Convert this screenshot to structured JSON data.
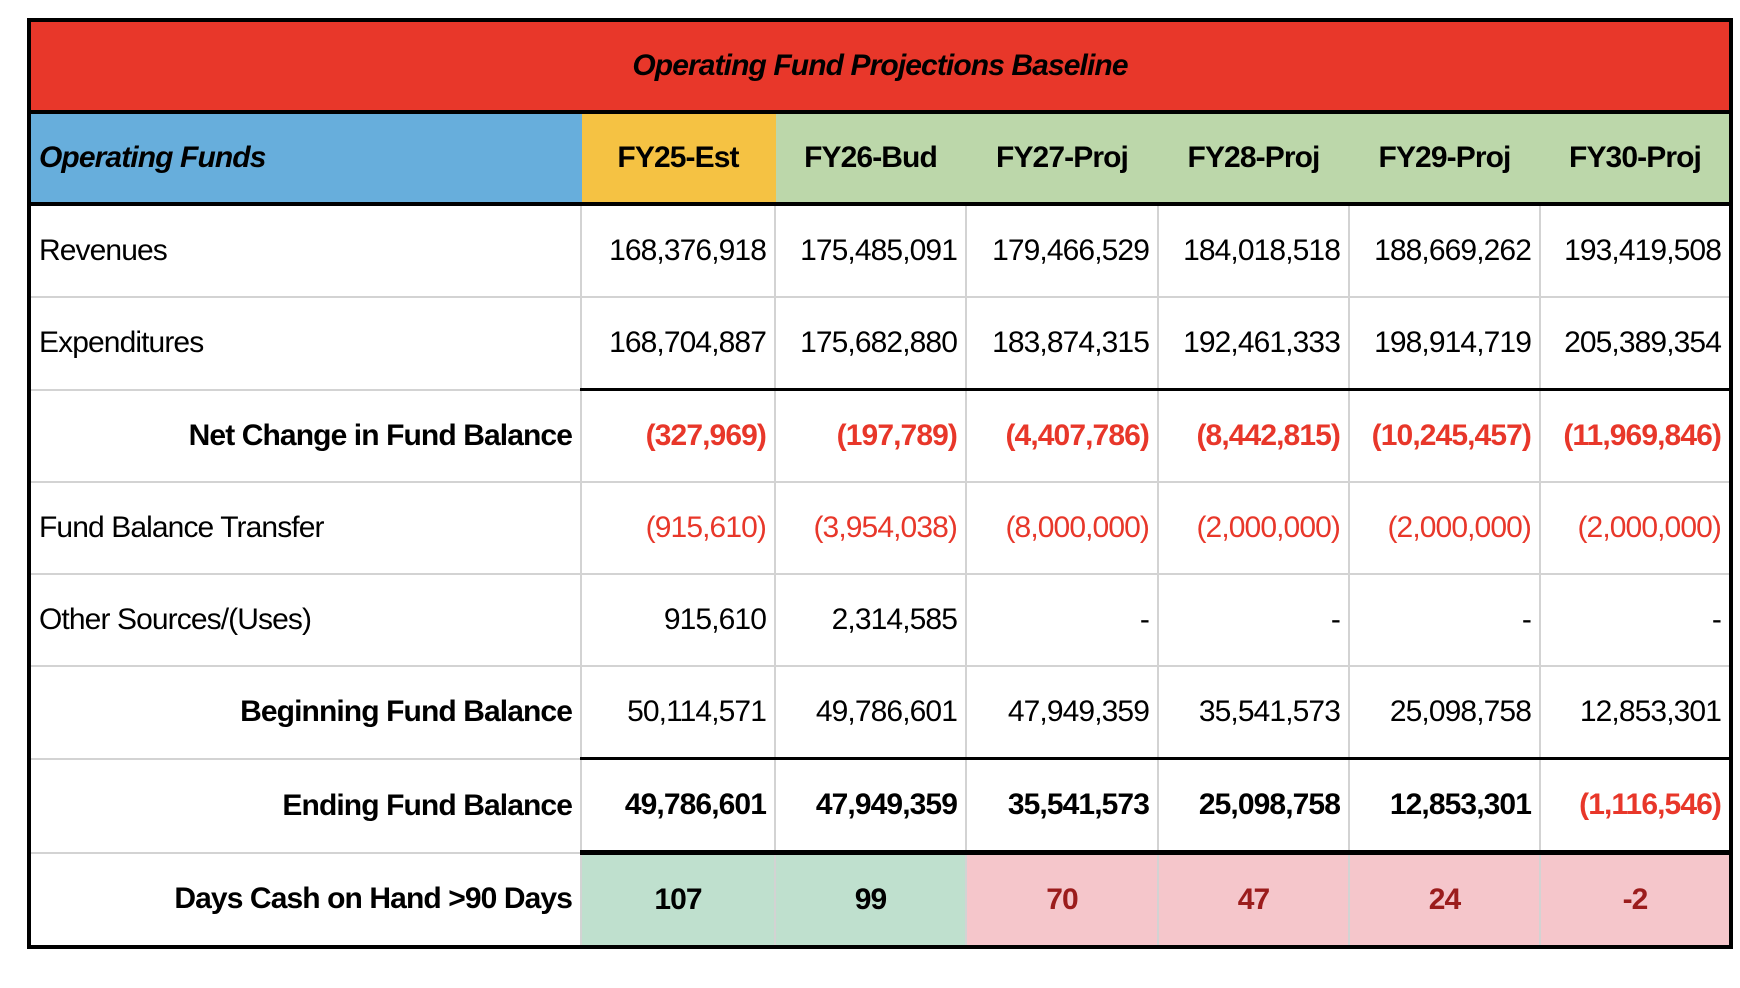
{
  "title": "Operating Fund Projections Baseline",
  "header": {
    "label": "Operating Funds",
    "years": [
      "FY25-Est",
      "FY26-Bud",
      "FY27-Proj",
      "FY28-Proj",
      "FY29-Proj",
      "FY30-Proj"
    ]
  },
  "rows": [
    {
      "label": "Revenues",
      "values": [
        "168,376,918",
        "175,485,091",
        "179,466,529",
        "184,018,518",
        "188,669,262",
        "193,419,508"
      ]
    },
    {
      "label": "Expenditures",
      "values": [
        "168,704,887",
        "175,682,880",
        "183,874,315",
        "192,461,333",
        "198,914,719",
        "205,389,354"
      ]
    },
    {
      "label": "Net Change in Fund Balance",
      "values": [
        "(327,969)",
        "(197,789)",
        "(4,407,786)",
        "(8,442,815)",
        "(10,245,457)",
        "(11,969,846)"
      ]
    },
    {
      "label": "Fund Balance Transfer",
      "values": [
        "(915,610)",
        "(3,954,038)",
        "(8,000,000)",
        "(2,000,000)",
        "(2,000,000)",
        "(2,000,000)"
      ]
    },
    {
      "label": "Other Sources/(Uses)",
      "values": [
        "915,610",
        "2,314,585",
        "-",
        "-",
        "-",
        "-"
      ]
    },
    {
      "label": "Beginning Fund Balance",
      "values": [
        "50,114,571",
        "49,786,601",
        "47,949,359",
        "35,541,573",
        "25,098,758",
        "12,853,301"
      ]
    },
    {
      "label": "Ending Fund Balance",
      "values": [
        "49,786,601",
        "47,949,359",
        "35,541,573",
        "25,098,758",
        "12,853,301",
        "(1,116,546)"
      ]
    },
    {
      "label": "Days Cash on Hand >90 Days",
      "values": [
        "107",
        "99",
        "70",
        "47",
        "24",
        "-2"
      ]
    }
  ],
  "colors": {
    "title_bg": "#E8372A",
    "label_bg": "#67AEDC",
    "estimate_bg": "#F5C243",
    "projection_bg": "#BCD7AA",
    "negative_text": "#E8372A",
    "days_ok_bg": "#BFE0CE",
    "days_low_bg": "#F5C6CB",
    "days_low_text": "#9B1C1C"
  }
}
